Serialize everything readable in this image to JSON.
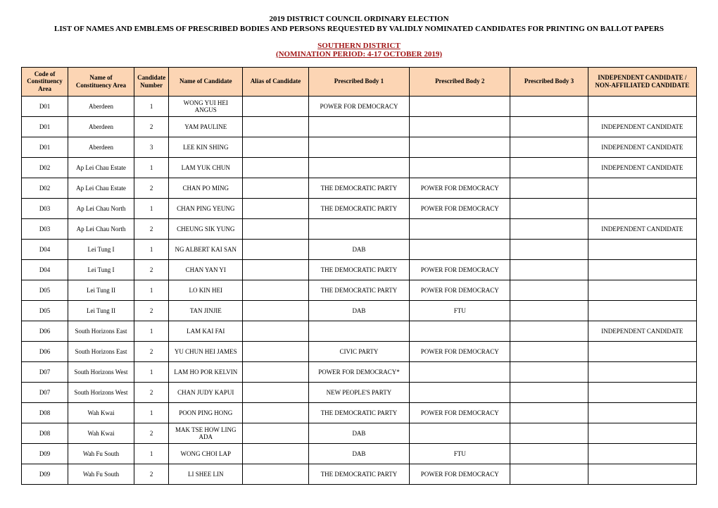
{
  "header": {
    "title1": "2019 DISTRICT COUNCIL ORDINARY ELECTION",
    "title2": "LIST OF NAMES AND EMBLEMS OF PRESCRIBED BODIES AND PERSONS REQUESTED BY VALIDLY NOMINATED CANDIDATES FOR PRINTING ON BALLOT PAPERS",
    "district": "SOUTHERN DISTRICT",
    "period": "(NOMINATION PERIOD: 4-17 OCTOBER 2019)"
  },
  "styling": {
    "header_bg": "#fcd5b4",
    "border_color": "#000000",
    "district_color": "#a01515",
    "page_bg": "#ffffff",
    "font_family": "Times New Roman",
    "header_fontsize": 11,
    "cell_fontsize": 9
  },
  "columns": [
    "Code of Constituency Area",
    "Name of Constituency Area",
    "Candidate Number",
    "Name of Candidate",
    "Alias of Candidate",
    "Prescribed Body 1",
    "Prescribed Body 2",
    "Prescribed Body 3",
    "INDEPENDENT CANDIDATE / NON-AFFILIATED CANDIDATE"
  ],
  "rows": [
    {
      "code": "D01",
      "constituency": "Aberdeen",
      "number": "1",
      "name": "WONG YUI HEI ANGUS",
      "alias": "",
      "body1": "POWER FOR DEMOCRACY",
      "body2": "",
      "body3": "",
      "independent": ""
    },
    {
      "code": "D01",
      "constituency": "Aberdeen",
      "number": "2",
      "name": "YAM PAULINE",
      "alias": "",
      "body1": "",
      "body2": "",
      "body3": "",
      "independent": "INDEPENDENT CANDIDATE"
    },
    {
      "code": "D01",
      "constituency": "Aberdeen",
      "number": "3",
      "name": "LEE KIN SHING",
      "alias": "",
      "body1": "",
      "body2": "",
      "body3": "",
      "independent": "INDEPENDENT CANDIDATE"
    },
    {
      "code": "D02",
      "constituency": "Ap Lei Chau Estate",
      "number": "1",
      "name": "LAM YUK CHUN",
      "alias": "",
      "body1": "",
      "body2": "",
      "body3": "",
      "independent": "INDEPENDENT CANDIDATE"
    },
    {
      "code": "D02",
      "constituency": "Ap Lei Chau Estate",
      "number": "2",
      "name": "CHAN PO MING",
      "alias": "",
      "body1": "THE DEMOCRATIC PARTY",
      "body2": "POWER FOR DEMOCRACY",
      "body3": "",
      "independent": ""
    },
    {
      "code": "D03",
      "constituency": "Ap Lei Chau North",
      "number": "1",
      "name": "CHAN PING YEUNG",
      "alias": "",
      "body1": "THE DEMOCRATIC PARTY",
      "body2": "POWER FOR DEMOCRACY",
      "body3": "",
      "independent": ""
    },
    {
      "code": "D03",
      "constituency": "Ap Lei Chau North",
      "number": "2",
      "name": "CHEUNG SIK YUNG",
      "alias": "",
      "body1": "",
      "body2": "",
      "body3": "",
      "independent": "INDEPENDENT CANDIDATE"
    },
    {
      "code": "D04",
      "constituency": "Lei Tung I",
      "number": "1",
      "name": "NG ALBERT KAI SAN",
      "alias": "",
      "body1": "DAB",
      "body2": "",
      "body3": "",
      "independent": ""
    },
    {
      "code": "D04",
      "constituency": "Lei Tung I",
      "number": "2",
      "name": "CHAN YAN YI",
      "alias": "",
      "body1": "THE DEMOCRATIC PARTY",
      "body2": "POWER FOR DEMOCRACY",
      "body3": "",
      "independent": ""
    },
    {
      "code": "D05",
      "constituency": "Lei Tung II",
      "number": "1",
      "name": "LO KIN HEI",
      "alias": "",
      "body1": "THE DEMOCRATIC PARTY",
      "body2": "POWER FOR DEMOCRACY",
      "body3": "",
      "independent": ""
    },
    {
      "code": "D05",
      "constituency": "Lei Tung II",
      "number": "2",
      "name": "TAN JINJIE",
      "alias": "",
      "body1": "DAB",
      "body2": "FTU",
      "body3": "",
      "independent": ""
    },
    {
      "code": "D06",
      "constituency": "South Horizons East",
      "number": "1",
      "name": "LAM KAI FAI",
      "alias": "",
      "body1": "",
      "body2": "",
      "body3": "",
      "independent": "INDEPENDENT CANDIDATE"
    },
    {
      "code": "D06",
      "constituency": "South Horizons East",
      "number": "2",
      "name": "YU CHUN HEI JAMES",
      "alias": "",
      "body1": "CIVIC PARTY",
      "body2": "POWER FOR DEMOCRACY",
      "body3": "",
      "independent": ""
    },
    {
      "code": "D07",
      "constituency": "South Horizons West",
      "number": "1",
      "name": "LAM HO POR KELVIN",
      "alias": "",
      "body1": "POWER FOR DEMOCRACY*",
      "body2": "",
      "body3": "",
      "independent": ""
    },
    {
      "code": "D07",
      "constituency": "South Horizons West",
      "number": "2",
      "name": "CHAN JUDY KAPUI",
      "alias": "",
      "body1": "NEW PEOPLE'S PARTY",
      "body2": "",
      "body3": "",
      "independent": ""
    },
    {
      "code": "D08",
      "constituency": "Wah Kwai",
      "number": "1",
      "name": "POON PING HONG",
      "alias": "",
      "body1": "THE DEMOCRATIC PARTY",
      "body2": "POWER FOR DEMOCRACY",
      "body3": "",
      "independent": ""
    },
    {
      "code": "D08",
      "constituency": "Wah Kwai",
      "number": "2",
      "name": "MAK TSE HOW LING ADA",
      "alias": "",
      "body1": "DAB",
      "body2": "",
      "body3": "",
      "independent": ""
    },
    {
      "code": "D09",
      "constituency": "Wah Fu South",
      "number": "1",
      "name": "WONG CHOI LAP",
      "alias": "",
      "body1": "DAB",
      "body2": "FTU",
      "body3": "",
      "independent": ""
    },
    {
      "code": "D09",
      "constituency": "Wah Fu South",
      "number": "2",
      "name": "LI SHEE LIN",
      "alias": "",
      "body1": "THE DEMOCRATIC PARTY",
      "body2": "POWER FOR DEMOCRACY",
      "body3": "",
      "independent": ""
    }
  ]
}
